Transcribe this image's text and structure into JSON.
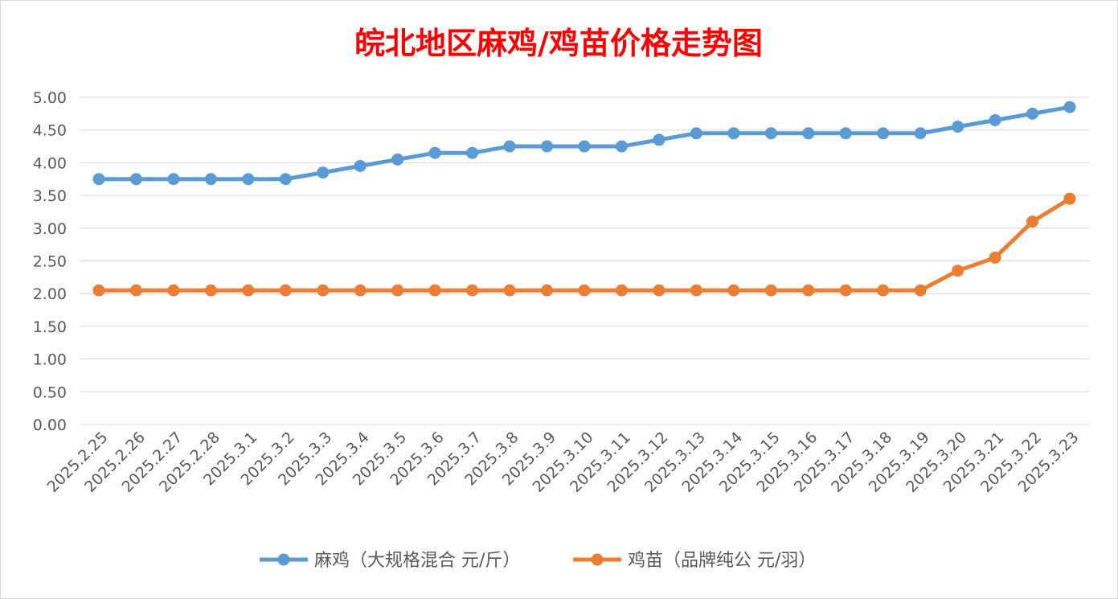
{
  "chart_data": {
    "type": "line",
    "title": "皖北地区麻鸡/鸡苗价格走势图",
    "categories": [
      "2025.2.25",
      "2025.2.26",
      "2025.2.27",
      "2025.2.28",
      "2025.3.1",
      "2025.3.2",
      "2025.3.3",
      "2025.3.4",
      "2025.3.5",
      "2025.3.6",
      "2025.3.7",
      "2025.3.8",
      "2025.3.9",
      "2025.3.10",
      "2025.3.11",
      "2025.3.12",
      "2025.3.13",
      "2025.3.14",
      "2025.3.15",
      "2025.3.16",
      "2025.3.17",
      "2025.3.18",
      "2025.3.19",
      "2025.3.20",
      "2025.3.21",
      "2025.3.22",
      "2025.3.23"
    ],
    "ylim": [
      0,
      5
    ],
    "yticks": [
      "0.00",
      "0.50",
      "1.00",
      "1.50",
      "2.00",
      "2.50",
      "3.00",
      "3.50",
      "4.00",
      "4.50",
      "5.00"
    ],
    "grid": true,
    "legend_position": "bottom",
    "series": [
      {
        "name": "麻鸡（大规格混合 元/斤）",
        "color": "#5b9bd5",
        "values": [
          3.75,
          3.75,
          3.75,
          3.75,
          3.75,
          3.75,
          3.85,
          3.95,
          4.05,
          4.15,
          4.15,
          4.25,
          4.25,
          4.25,
          4.25,
          4.35,
          4.45,
          4.45,
          4.45,
          4.45,
          4.45,
          4.45,
          4.45,
          4.55,
          4.65,
          4.75,
          4.85
        ]
      },
      {
        "name": "鸡苗（品牌纯公 元/羽）",
        "color": "#ed7d31",
        "values": [
          2.05,
          2.05,
          2.05,
          2.05,
          2.05,
          2.05,
          2.05,
          2.05,
          2.05,
          2.05,
          2.05,
          2.05,
          2.05,
          2.05,
          2.05,
          2.05,
          2.05,
          2.05,
          2.05,
          2.05,
          2.05,
          2.05,
          2.05,
          2.35,
          2.55,
          3.1,
          3.45
        ]
      }
    ]
  }
}
